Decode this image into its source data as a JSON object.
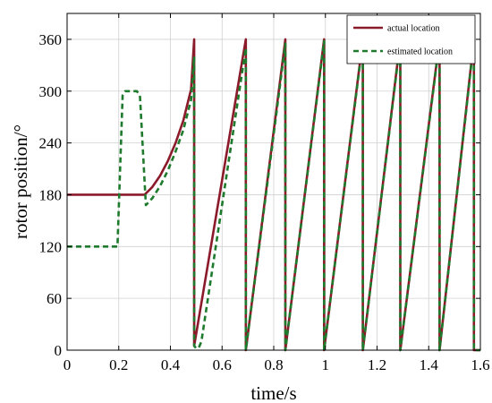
{
  "chart_data": {
    "type": "line",
    "xlabel": "time/s",
    "ylabel": "rotor position/°",
    "xlim": [
      0,
      1.6
    ],
    "ylim": [
      0,
      390
    ],
    "xticks": [
      "0",
      "0.2",
      "0.4",
      "0.6",
      "0.8",
      "1",
      "1.2",
      "1.4",
      "1.6"
    ],
    "yticks": [
      "0",
      "60",
      "120",
      "180",
      "240",
      "300",
      "360"
    ],
    "grid": true,
    "legend_position": "top-right",
    "series": [
      {
        "name": "actual location",
        "color": "#8b1a2b",
        "style": "solid",
        "x": [
          0,
          0.3,
          0.33,
          0.36,
          0.39,
          0.42,
          0.45,
          0.48,
          0.492,
          0.492,
          0.692,
          0.692,
          0.845,
          0.845,
          0.995,
          0.995,
          1.145,
          1.145,
          1.29,
          1.29,
          1.442,
          1.442,
          1.575,
          1.575,
          1.6
        ],
        "values": [
          180,
          180,
          189,
          202,
          219,
          240,
          266,
          302,
          360,
          5,
          360,
          0,
          360,
          0,
          360,
          0,
          360,
          0,
          360,
          0,
          360,
          0,
          360,
          0,
          0
        ]
      },
      {
        "name": "estimated location",
        "color": "#1e7a2c",
        "style": "dashed",
        "x": [
          0,
          0.195,
          0.215,
          0.225,
          0.27,
          0.282,
          0.305,
          0.33,
          0.36,
          0.39,
          0.42,
          0.45,
          0.48,
          0.492,
          0.492,
          0.5,
          0.51,
          0.52,
          0.692,
          0.692,
          0.845,
          0.845,
          0.995,
          0.995,
          1.145,
          1.145,
          1.29,
          1.29,
          1.442,
          1.442,
          1.575,
          1.575,
          1.6
        ],
        "values": [
          120,
          120,
          295,
          300,
          300,
          295,
          168,
          176,
          190,
          208,
          230,
          255,
          290,
          340,
          5,
          2,
          3,
          10,
          350,
          0,
          355,
          0,
          358,
          0,
          358,
          0,
          358,
          0,
          358,
          0,
          358,
          0,
          0
        ]
      }
    ]
  }
}
